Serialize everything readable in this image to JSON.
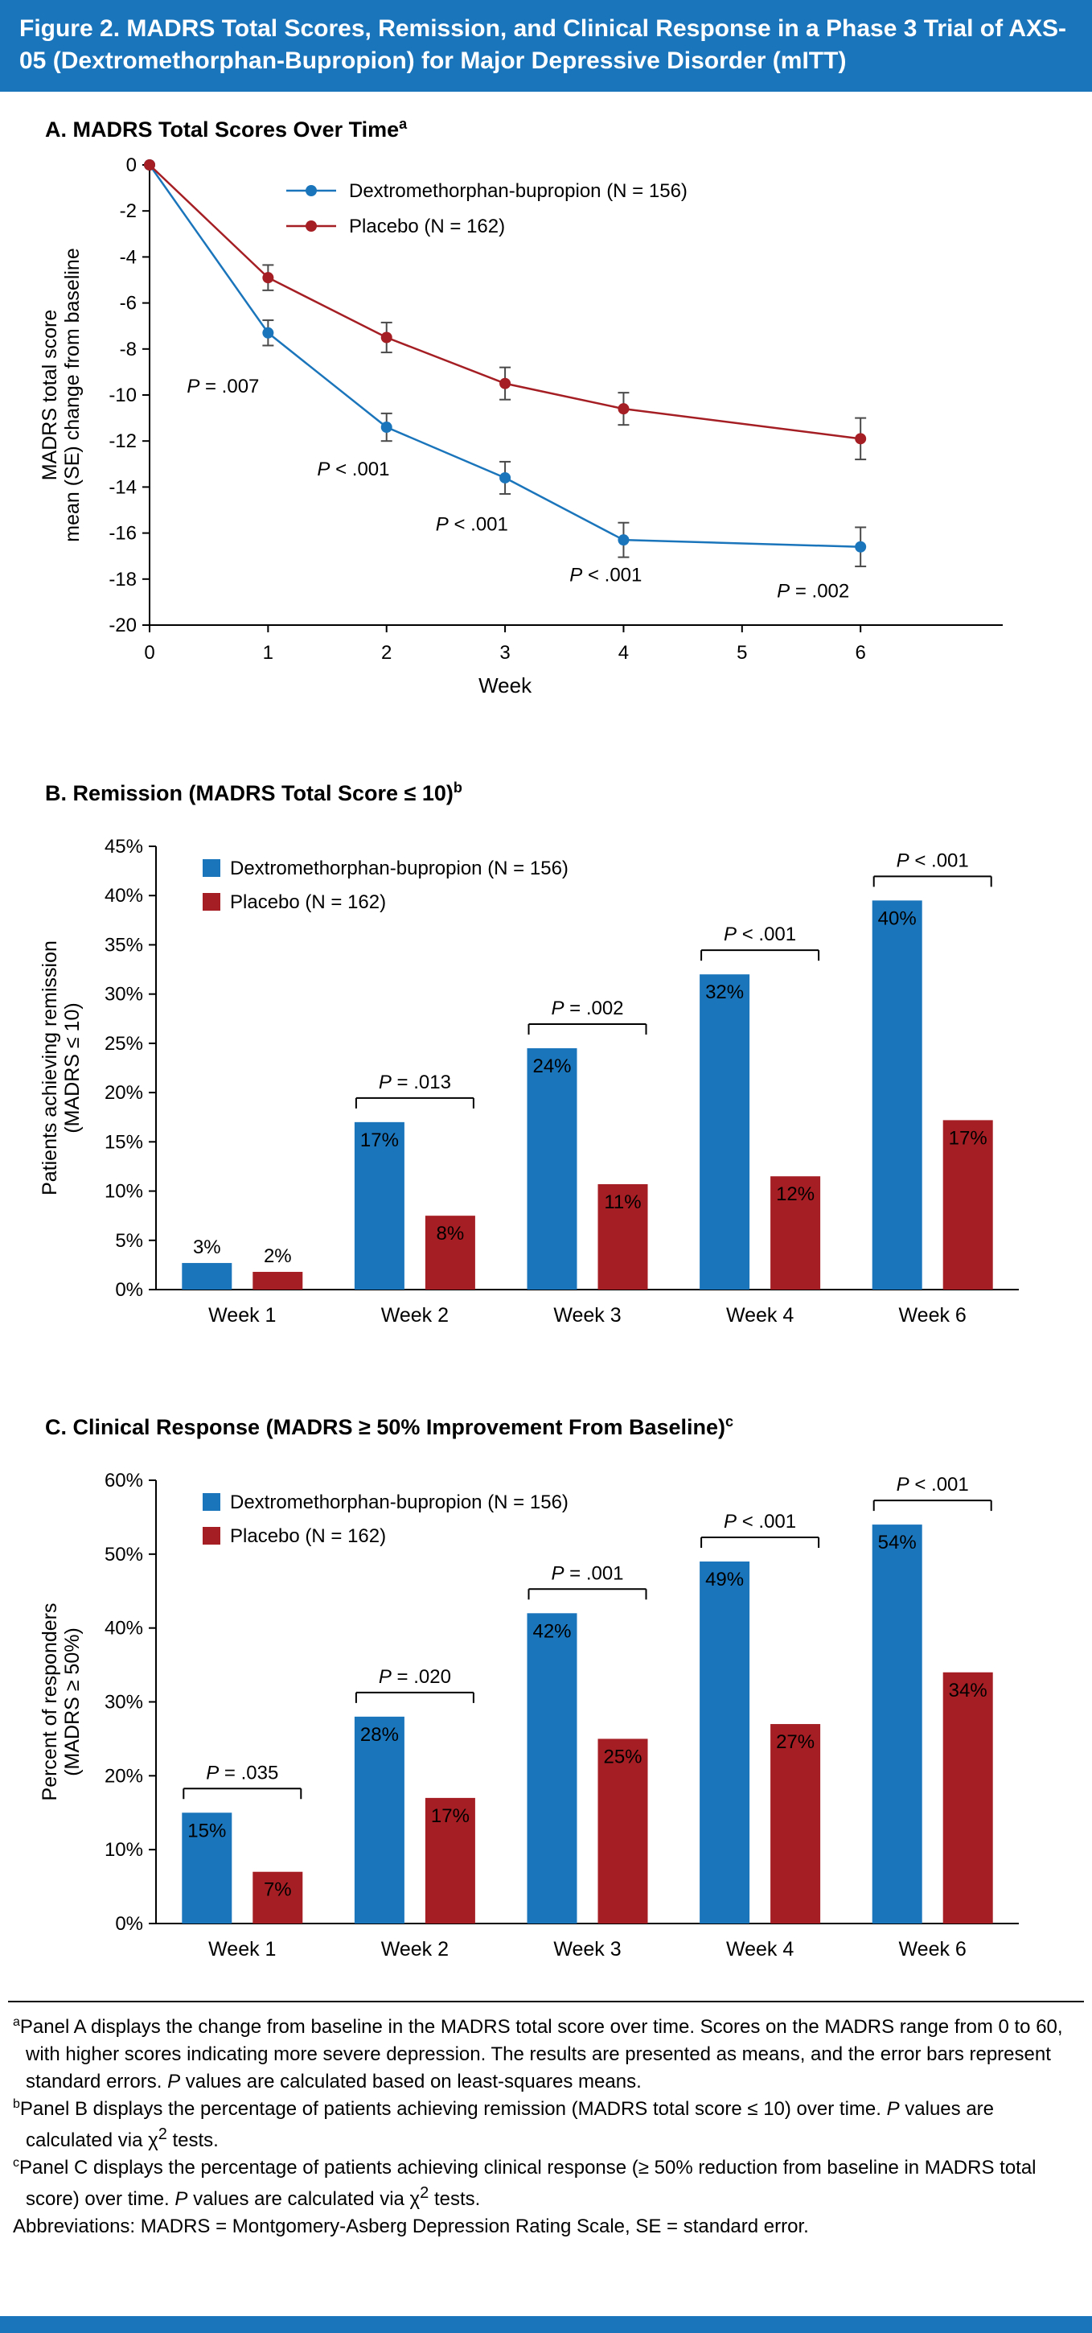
{
  "header": {
    "title": "Figure 2. MADRS Total Scores, Remission, and Clinical Response in a Phase 3 Trial of AXS-05 (Dextromethorphan-Bupropion) for Major Depressive Disorder (mITT)"
  },
  "colors": {
    "accent_blue": "#1B75BB",
    "series_blue": "#1B75BB",
    "series_red": "#A41E23"
  },
  "chart_data": [
    {
      "id": "panelA",
      "type": "line",
      "title": "A. MADRS Total Scores Over Time",
      "title_superscript": "a",
      "xlabel": "Week",
      "ylabel": [
        "MADRS total score",
        "mean (SE) change from baseline"
      ],
      "x_ticks": [
        0,
        1,
        2,
        3,
        4,
        5,
        6
      ],
      "x_domain_max": 7.2,
      "ylim": [
        -20,
        0
      ],
      "y_ticks": [
        0,
        -2,
        -4,
        -6,
        -8,
        -10,
        -12,
        -14,
        -16,
        -18,
        -20
      ],
      "grid": false,
      "legend_position": "top-inside",
      "series": [
        {
          "name": "Dextromethorphan-bupropion (N = 156)",
          "color": "#1B75BB",
          "x": [
            0,
            1,
            2,
            3,
            4,
            6
          ],
          "y": [
            0,
            -7.3,
            -11.4,
            -13.6,
            -16.3,
            -16.6
          ],
          "se": [
            0,
            0.55,
            0.6,
            0.7,
            0.75,
            0.85
          ]
        },
        {
          "name": "Placebo (N = 162)",
          "color": "#A41E23",
          "x": [
            0,
            1,
            2,
            3,
            4,
            6
          ],
          "y": [
            0,
            -4.9,
            -7.5,
            -9.5,
            -10.6,
            -11.9
          ],
          "se": [
            0,
            0.55,
            0.65,
            0.7,
            0.7,
            0.9
          ]
        }
      ],
      "annotations": [
        {
          "x": 0.62,
          "y": -9.9,
          "text": "P = .007"
        },
        {
          "x": 1.72,
          "y": -13.5,
          "text": "P < .001"
        },
        {
          "x": 2.72,
          "y": -15.9,
          "text": "P < .001"
        },
        {
          "x": 3.85,
          "y": -18.1,
          "text": "P < .001"
        },
        {
          "x": 5.6,
          "y": -18.8,
          "text": "P = .002"
        }
      ]
    },
    {
      "id": "panelB",
      "type": "bar",
      "title": "B. Remission (MADRS Total Score ≤ 10)",
      "title_superscript": "b",
      "ylabel": [
        "Patients achieving remission",
        "(MADRS ≤ 10)"
      ],
      "categories": [
        "Week 1",
        "Week 2",
        "Week 3",
        "Week 4",
        "Week 6"
      ],
      "ylim": [
        0,
        45
      ],
      "y_tick_step": 5,
      "grid": false,
      "legend_position": "top-left-inside",
      "series": [
        {
          "name": "Dextromethorphan-bupropion (N = 156)",
          "color": "#1B75BB",
          "values": [
            3,
            17,
            24,
            32,
            40
          ],
          "bar_heights": [
            2.7,
            17,
            24.5,
            32,
            39.5
          ]
        },
        {
          "name": "Placebo (N = 162)",
          "color": "#A41E23",
          "values": [
            2,
            8,
            11,
            12,
            17
          ],
          "bar_heights": [
            1.8,
            7.5,
            10.7,
            11.5,
            17.2
          ]
        }
      ],
      "p_values": [
        null,
        "P = .013",
        "P = .002",
        "P < .001",
        "P < .001"
      ]
    },
    {
      "id": "panelC",
      "type": "bar",
      "title": "C. Clinical Response (MADRS ≥ 50% Improvement From Baseline)",
      "title_superscript": "c",
      "ylabel": [
        "Percent of responders",
        "(MADRS ≥ 50%)"
      ],
      "categories": [
        "Week 1",
        "Week 2",
        "Week 3",
        "Week 4",
        "Week 6"
      ],
      "ylim": [
        0,
        60
      ],
      "y_tick_step": 10,
      "grid": false,
      "legend_position": "top-left-inside",
      "series": [
        {
          "name": "Dextromethorphan-bupropion (N = 156)",
          "color": "#1B75BB",
          "values": [
            15,
            28,
            42,
            49,
            54
          ]
        },
        {
          "name": "Placebo (N = 162)",
          "color": "#A41E23",
          "values": [
            7,
            17,
            25,
            27,
            34
          ]
        }
      ],
      "p_values": [
        "P = .035",
        "P = .020",
        "P = .001",
        "P < .001",
        "P < .001"
      ]
    }
  ],
  "footnotes": {
    "items": [
      {
        "sup": "a",
        "text": "Panel A displays the change from baseline in the MADRS total score over time. Scores on the MADRS range from 0 to 60, with higher scores indicating more severe depression. The results are presented as means, and the error bars represent standard errors. P values are calculated based on least-squares means."
      },
      {
        "sup": "b",
        "text": "Panel B displays the percentage of patients achieving remission (MADRS total score ≤ 10) over time. P values are calculated via χ2 tests."
      },
      {
        "sup": "c",
        "text": "Panel C displays the percentage of patients achieving clinical response (≥ 50% reduction from baseline in MADRS total score) over time. P values are calculated via χ2 tests."
      },
      {
        "sup": "",
        "text": "Abbreviations: MADRS = Montgomery-Asberg Depression Rating Scale, SE = standard error."
      }
    ]
  }
}
